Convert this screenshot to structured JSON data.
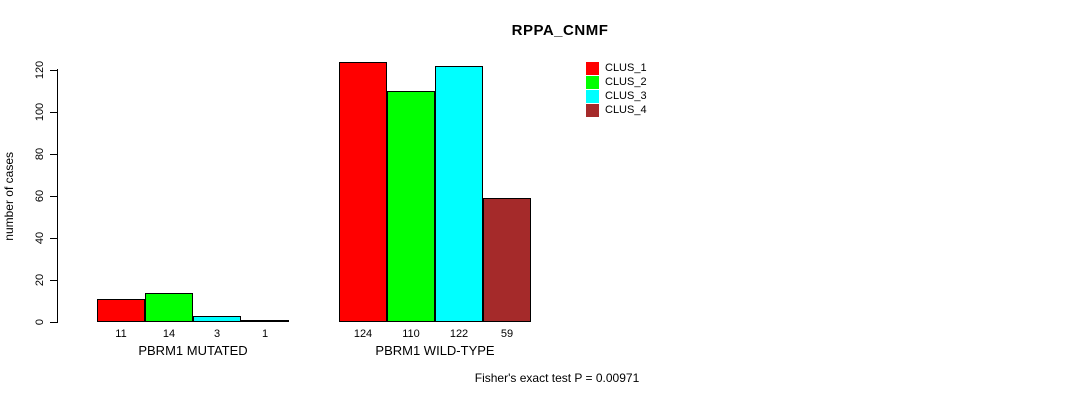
{
  "chart_data": {
    "type": "bar",
    "title": "RPPA_CNMF",
    "ylabel": "number of cases",
    "xlabel": "",
    "ylim": [
      0,
      120
    ],
    "yticks": [
      0,
      20,
      40,
      60,
      80,
      100,
      120
    ],
    "grid": false,
    "legend_position": "top-right",
    "categories": [
      "PBRM1 MUTATED",
      "PBRM1 WILD-TYPE"
    ],
    "series": [
      {
        "name": "CLUS_1",
        "color": "#FF0000",
        "values": [
          11,
          124
        ]
      },
      {
        "name": "CLUS_2",
        "color": "#00FF00",
        "values": [
          14,
          110
        ]
      },
      {
        "name": "CLUS_3",
        "color": "#00FFFF",
        "values": [
          3,
          122
        ]
      },
      {
        "name": "CLUS_4",
        "color": "#A52A2A",
        "values": [
          1,
          59
        ]
      }
    ],
    "bar_value_labels": [
      [
        "11",
        "14",
        "3",
        "1"
      ],
      [
        "124",
        "110",
        "122",
        "59"
      ]
    ],
    "caption": "Fisher's exact test P = 0.00971"
  },
  "colors": {
    "background": "#FFFFFF",
    "axis": "#000000",
    "bar_border": "#000000",
    "text": "#000000"
  }
}
